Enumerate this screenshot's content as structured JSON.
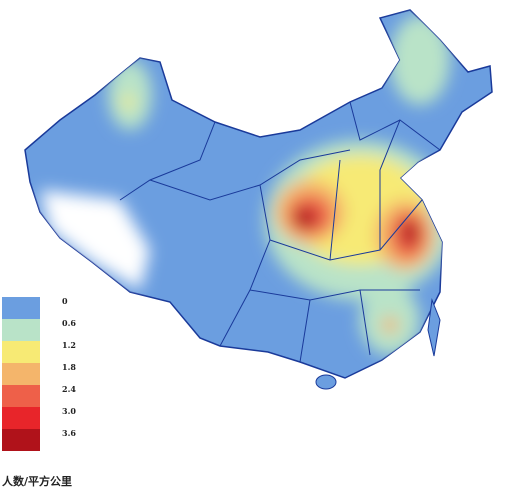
{
  "legend": {
    "title": "人数/平方公里",
    "items": [
      {
        "label": "0",
        "color": "#6b9ee0"
      },
      {
        "label": "0.6",
        "color": "#b9e3c8"
      },
      {
        "label": "1.2",
        "color": "#f7ea74"
      },
      {
        "label": "1.8",
        "color": "#f4b56b"
      },
      {
        "label": "2.4",
        "color": "#ee6049"
      },
      {
        "label": "3.0",
        "color": "#e8252a"
      },
      {
        "label": "3.6",
        "color": "#b0121a"
      }
    ]
  }
}
